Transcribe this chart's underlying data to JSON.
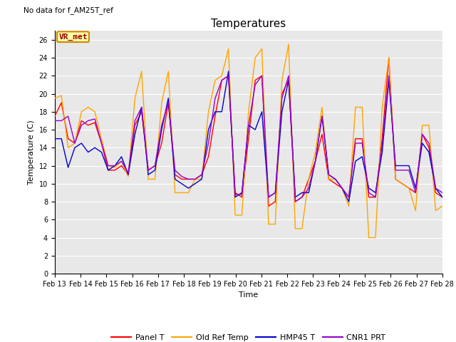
{
  "title": "Temperatures",
  "ylabel": "Temperature (C)",
  "xlabel": "Time",
  "no_data_text": "No data for f_AM25T_ref",
  "vr_met_label": "VR_met",
  "ylim": [
    0,
    27
  ],
  "yticks": [
    0,
    2,
    4,
    6,
    8,
    10,
    12,
    14,
    16,
    18,
    20,
    22,
    24,
    26
  ],
  "xtick_labels": [
    "Feb 13",
    "Feb 14",
    "Feb 15",
    "Feb 16",
    "Feb 17",
    "Feb 18",
    "Feb 19",
    "Feb 20",
    "Feb 21",
    "Feb 22",
    "Feb 23",
    "Feb 24",
    "Feb 25",
    "Feb 26",
    "Feb 27",
    "Feb 28"
  ],
  "colors": {
    "panel_t": "#ff0000",
    "old_ref": "#ffa500",
    "hmp45": "#0000cc",
    "cnr1": "#9900cc"
  },
  "legend_labels": [
    "Panel T",
    "Old Ref Temp",
    "HMP45 T",
    "CNR1 PRT"
  ],
  "bg_color": "#e8e8e8",
  "panel_t": [
    17.5,
    19.0,
    15.0,
    14.5,
    17.0,
    16.5,
    16.8,
    14.5,
    11.5,
    11.5,
    12.0,
    11.0,
    16.5,
    18.0,
    11.5,
    12.0,
    14.5,
    19.0,
    11.0,
    10.5,
    10.5,
    10.5,
    11.0,
    13.0,
    17.5,
    21.5,
    22.0,
    9.0,
    8.5,
    15.0,
    21.5,
    22.0,
    7.5,
    8.0,
    20.0,
    21.5,
    8.0,
    8.5,
    10.5,
    12.5,
    15.5,
    10.5,
    10.0,
    9.5,
    8.5,
    15.0,
    15.0,
    8.5,
    8.5,
    15.0,
    24.0,
    10.5,
    10.0,
    9.5,
    9.0,
    15.5,
    14.0,
    9.0,
    8.5
  ],
  "old_ref": [
    19.5,
    19.8,
    14.0,
    14.5,
    18.0,
    18.5,
    18.0,
    15.0,
    12.0,
    11.8,
    12.5,
    10.8,
    19.5,
    22.5,
    10.5,
    10.5,
    19.0,
    22.5,
    9.0,
    9.0,
    9.0,
    10.5,
    10.5,
    18.0,
    21.5,
    22.0,
    25.0,
    6.5,
    6.5,
    18.0,
    24.0,
    25.0,
    5.5,
    5.5,
    21.5,
    25.5,
    5.0,
    5.0,
    10.5,
    13.5,
    18.5,
    10.5,
    10.5,
    9.5,
    7.5,
    18.5,
    18.5,
    4.0,
    4.0,
    18.5,
    24.0,
    10.5,
    10.0,
    9.5,
    7.0,
    16.5,
    16.5,
    7.0,
    7.5
  ],
  "hmp45": [
    15.0,
    15.0,
    11.8,
    14.0,
    14.5,
    13.5,
    14.0,
    13.5,
    11.5,
    12.0,
    13.0,
    11.0,
    15.5,
    18.5,
    11.0,
    11.5,
    16.0,
    19.5,
    10.5,
    10.0,
    9.5,
    10.0,
    10.5,
    16.0,
    18.0,
    18.0,
    22.5,
    8.5,
    9.0,
    16.5,
    16.0,
    18.0,
    8.5,
    9.0,
    18.0,
    21.5,
    8.5,
    9.0,
    9.0,
    12.5,
    17.5,
    11.0,
    10.5,
    9.5,
    8.0,
    12.5,
    13.0,
    9.5,
    9.0,
    13.5,
    21.5,
    12.0,
    12.0,
    12.0,
    9.5,
    14.5,
    13.5,
    9.5,
    8.5
  ],
  "cnr1": [
    17.0,
    17.0,
    17.5,
    14.5,
    16.5,
    17.0,
    17.2,
    14.5,
    12.0,
    12.0,
    12.5,
    11.2,
    17.0,
    18.5,
    11.5,
    12.0,
    16.5,
    19.0,
    11.5,
    10.8,
    10.5,
    10.5,
    11.0,
    14.5,
    19.5,
    21.5,
    22.0,
    8.8,
    8.8,
    16.5,
    21.0,
    22.0,
    8.5,
    9.0,
    19.5,
    22.0,
    8.0,
    8.5,
    9.5,
    12.5,
    17.5,
    11.0,
    10.5,
    9.5,
    8.5,
    14.5,
    14.5,
    9.0,
    8.5,
    14.5,
    22.0,
    11.5,
    11.5,
    11.5,
    9.0,
    15.5,
    14.5,
    9.5,
    9.0
  ]
}
